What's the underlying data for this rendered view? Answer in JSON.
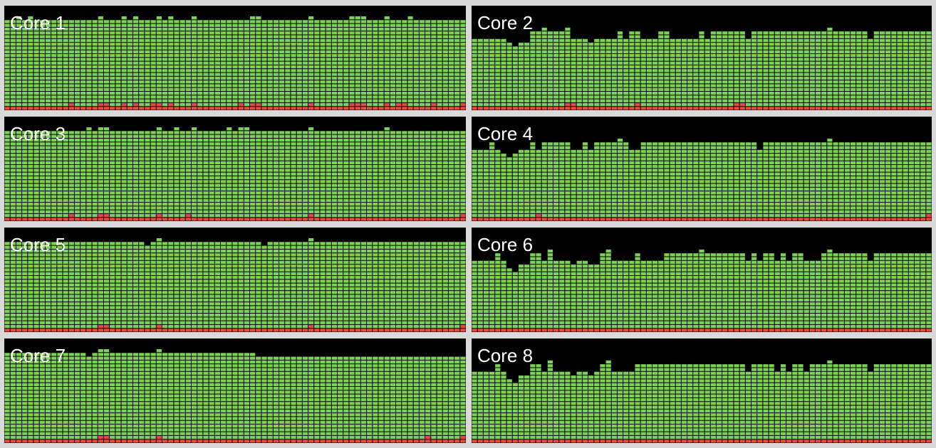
{
  "colors": {
    "user": "#7ed157",
    "system": "#e5483f",
    "background": "#000000",
    "window": "#d9d9d9",
    "label": "#ffffff"
  },
  "cores": [
    {
      "label": "Core 1",
      "user": [
        0.9,
        0.9,
        0.93,
        0.9,
        0.93,
        0.9,
        0.9,
        0.9,
        0.9,
        0.9,
        0.9,
        0.9,
        0.9,
        0.9,
        0.9,
        0.9,
        0.93,
        0.9,
        0.9,
        0.9,
        0.93,
        0.9,
        0.93,
        0.9,
        0.9,
        0.9,
        0.93,
        0.9,
        0.93,
        0.9,
        0.9,
        0.9,
        0.93,
        0.9,
        0.9,
        0.9,
        0.9,
        0.9,
        0.9,
        0.9,
        0.9,
        0.9,
        0.93,
        0.93,
        0.9,
        0.9,
        0.9,
        0.9,
        0.9,
        0.9,
        0.9,
        0.9,
        0.93,
        0.9,
        0.9,
        0.9,
        0.9,
        0.9,
        0.9,
        0.93,
        0.93,
        0.93,
        0.9,
        0.9,
        0.9,
        0.93,
        0.9,
        0.9,
        0.9,
        0.93,
        0.9,
        0.9,
        0.9,
        0.9,
        0.9,
        0.9,
        0.9,
        0.9,
        0.9
      ],
      "system": [
        0.04,
        0.04,
        0.04,
        0.04,
        0.04,
        0.04,
        0.04,
        0.04,
        0.04,
        0.04,
        0.04,
        0.08,
        0.04,
        0.04,
        0.04,
        0.04,
        0.08,
        0.08,
        0.04,
        0.04,
        0.08,
        0.04,
        0.08,
        0.04,
        0.04,
        0.08,
        0.08,
        0.04,
        0.08,
        0.04,
        0.04,
        0.04,
        0.08,
        0.04,
        0.04,
        0.04,
        0.04,
        0.04,
        0.04,
        0.04,
        0.08,
        0.04,
        0.08,
        0.08,
        0.04,
        0.04,
        0.04,
        0.04,
        0.04,
        0.04,
        0.04,
        0.04,
        0.08,
        0.04,
        0.04,
        0.04,
        0.04,
        0.04,
        0.04,
        0.08,
        0.08,
        0.08,
        0.04,
        0.04,
        0.04,
        0.08,
        0.04,
        0.08,
        0.08,
        0.04,
        0.04,
        0.04,
        0.04,
        0.08,
        0.04,
        0.04,
        0.04,
        0.04,
        0.08
      ]
    },
    {
      "label": "Core 2",
      "user": [
        0.72,
        0.72,
        0.72,
        0.72,
        0.72,
        0.72,
        0.68,
        0.64,
        0.68,
        0.68,
        0.76,
        0.76,
        0.8,
        0.76,
        0.76,
        0.76,
        0.8,
        0.72,
        0.72,
        0.72,
        0.68,
        0.72,
        0.72,
        0.72,
        0.72,
        0.76,
        0.72,
        0.76,
        0.76,
        0.72,
        0.72,
        0.72,
        0.76,
        0.76,
        0.72,
        0.72,
        0.72,
        0.72,
        0.72,
        0.76,
        0.72,
        0.76,
        0.76,
        0.76,
        0.76,
        0.76,
        0.76,
        0.72,
        0.76,
        0.76,
        0.76,
        0.76,
        0.76,
        0.76,
        0.76,
        0.76,
        0.76,
        0.76,
        0.76,
        0.76,
        0.76,
        0.8,
        0.76,
        0.76,
        0.76,
        0.76,
        0.76,
        0.76,
        0.72,
        0.76,
        0.76,
        0.76,
        0.76,
        0.76,
        0.76,
        0.76,
        0.76,
        0.76,
        0.76
      ],
      "system": [
        0.04,
        0.04,
        0.04,
        0.04,
        0.04,
        0.04,
        0.04,
        0.04,
        0.04,
        0.04,
        0.04,
        0.04,
        0.04,
        0.04,
        0.04,
        0.04,
        0.08,
        0.08,
        0.04,
        0.04,
        0.04,
        0.04,
        0.04,
        0.04,
        0.04,
        0.04,
        0.04,
        0.04,
        0.08,
        0.04,
        0.04,
        0.04,
        0.04,
        0.04,
        0.04,
        0.04,
        0.04,
        0.04,
        0.04,
        0.04,
        0.04,
        0.04,
        0.04,
        0.04,
        0.04,
        0.08,
        0.08,
        0.04,
        0.04,
        0.04,
        0.04,
        0.04,
        0.04,
        0.04,
        0.04,
        0.04,
        0.04,
        0.04,
        0.04,
        0.04,
        0.04,
        0.04,
        0.04,
        0.04,
        0.04,
        0.04,
        0.04,
        0.04,
        0.04,
        0.04,
        0.04,
        0.04,
        0.04,
        0.04,
        0.04,
        0.04,
        0.04,
        0.04,
        0.04
      ]
    },
    {
      "label": "Core 3",
      "user": [
        0.9,
        0.9,
        0.9,
        0.9,
        0.9,
        0.9,
        0.9,
        0.9,
        0.9,
        0.9,
        0.9,
        0.9,
        0.9,
        0.9,
        0.93,
        0.9,
        0.93,
        0.93,
        0.9,
        0.9,
        0.9,
        0.9,
        0.9,
        0.9,
        0.9,
        0.9,
        0.93,
        0.9,
        0.9,
        0.93,
        0.9,
        0.9,
        0.93,
        0.9,
        0.9,
        0.9,
        0.9,
        0.9,
        0.93,
        0.9,
        0.93,
        0.93,
        0.9,
        0.9,
        0.9,
        0.9,
        0.9,
        0.9,
        0.9,
        0.9,
        0.9,
        0.9,
        0.93,
        0.9,
        0.9,
        0.9,
        0.9,
        0.9,
        0.9,
        0.9,
        0.9,
        0.9,
        0.9,
        0.9,
        0.9,
        0.93,
        0.9,
        0.9,
        0.9,
        0.9,
        0.9,
        0.9,
        0.9,
        0.9,
        0.9,
        0.9,
        0.9,
        0.9,
        0.9
      ],
      "system": [
        0.04,
        0.04,
        0.04,
        0.04,
        0.04,
        0.04,
        0.04,
        0.04,
        0.04,
        0.04,
        0.04,
        0.08,
        0.04,
        0.04,
        0.04,
        0.04,
        0.08,
        0.08,
        0.04,
        0.04,
        0.04,
        0.04,
        0.04,
        0.04,
        0.04,
        0.04,
        0.08,
        0.04,
        0.04,
        0.04,
        0.04,
        0.08,
        0.04,
        0.04,
        0.04,
        0.04,
        0.04,
        0.04,
        0.04,
        0.04,
        0.04,
        0.04,
        0.04,
        0.04,
        0.04,
        0.04,
        0.04,
        0.04,
        0.04,
        0.04,
        0.04,
        0.04,
        0.08,
        0.04,
        0.04,
        0.04,
        0.04,
        0.04,
        0.04,
        0.04,
        0.04,
        0.04,
        0.04,
        0.04,
        0.04,
        0.04,
        0.04,
        0.04,
        0.04,
        0.04,
        0.04,
        0.04,
        0.04,
        0.04,
        0.04,
        0.04,
        0.04,
        0.04,
        0.08
      ]
    },
    {
      "label": "Core 4",
      "user": [
        0.72,
        0.72,
        0.72,
        0.76,
        0.72,
        0.68,
        0.64,
        0.68,
        0.72,
        0.72,
        0.76,
        0.72,
        0.76,
        0.76,
        0.76,
        0.76,
        0.76,
        0.72,
        0.72,
        0.76,
        0.72,
        0.76,
        0.76,
        0.76,
        0.76,
        0.8,
        0.76,
        0.72,
        0.72,
        0.76,
        0.76,
        0.76,
        0.76,
        0.76,
        0.76,
        0.76,
        0.76,
        0.76,
        0.76,
        0.76,
        0.76,
        0.76,
        0.76,
        0.76,
        0.76,
        0.76,
        0.76,
        0.76,
        0.76,
        0.72,
        0.76,
        0.76,
        0.76,
        0.76,
        0.76,
        0.76,
        0.76,
        0.76,
        0.76,
        0.76,
        0.76,
        0.8,
        0.76,
        0.76,
        0.76,
        0.76,
        0.76,
        0.76,
        0.76,
        0.76,
        0.76,
        0.76,
        0.76,
        0.76,
        0.76,
        0.76,
        0.76,
        0.76,
        0.76
      ],
      "system": [
        0.04,
        0.04,
        0.04,
        0.04,
        0.04,
        0.04,
        0.04,
        0.04,
        0.04,
        0.04,
        0.04,
        0.08,
        0.04,
        0.04,
        0.04,
        0.04,
        0.04,
        0.04,
        0.04,
        0.04,
        0.04,
        0.04,
        0.04,
        0.04,
        0.04,
        0.04,
        0.04,
        0.04,
        0.04,
        0.04,
        0.04,
        0.04,
        0.04,
        0.04,
        0.04,
        0.04,
        0.04,
        0.04,
        0.04,
        0.04,
        0.04,
        0.04,
        0.04,
        0.04,
        0.04,
        0.04,
        0.04,
        0.04,
        0.04,
        0.04,
        0.04,
        0.04,
        0.04,
        0.04,
        0.04,
        0.04,
        0.04,
        0.04,
        0.04,
        0.04,
        0.04,
        0.04,
        0.04,
        0.04,
        0.04,
        0.04,
        0.04,
        0.04,
        0.04,
        0.04,
        0.04,
        0.04,
        0.04,
        0.04,
        0.04,
        0.04,
        0.04,
        0.04,
        0.08
      ]
    },
    {
      "label": "Core 5",
      "user": [
        0.9,
        0.9,
        0.9,
        0.9,
        0.9,
        0.9,
        0.9,
        0.9,
        0.9,
        0.9,
        0.9,
        0.9,
        0.9,
        0.9,
        0.9,
        0.9,
        0.9,
        0.9,
        0.9,
        0.9,
        0.9,
        0.9,
        0.9,
        0.9,
        0.87,
        0.9,
        0.93,
        0.9,
        0.9,
        0.9,
        0.9,
        0.9,
        0.9,
        0.9,
        0.9,
        0.9,
        0.9,
        0.9,
        0.9,
        0.9,
        0.9,
        0.9,
        0.9,
        0.9,
        0.87,
        0.9,
        0.9,
        0.9,
        0.9,
        0.9,
        0.9,
        0.9,
        0.93,
        0.9,
        0.9,
        0.9,
        0.9,
        0.9,
        0.9,
        0.9,
        0.9,
        0.9,
        0.9,
        0.9,
        0.9,
        0.9,
        0.9,
        0.9,
        0.9,
        0.9,
        0.9,
        0.9,
        0.9,
        0.9,
        0.9,
        0.9,
        0.9,
        0.9,
        0.9
      ],
      "system": [
        0.04,
        0.04,
        0.04,
        0.04,
        0.04,
        0.04,
        0.04,
        0.04,
        0.04,
        0.04,
        0.04,
        0.04,
        0.04,
        0.04,
        0.04,
        0.04,
        0.08,
        0.08,
        0.04,
        0.04,
        0.04,
        0.04,
        0.04,
        0.04,
        0.04,
        0.04,
        0.08,
        0.04,
        0.04,
        0.04,
        0.04,
        0.04,
        0.04,
        0.04,
        0.04,
        0.04,
        0.04,
        0.04,
        0.04,
        0.04,
        0.04,
        0.04,
        0.04,
        0.04,
        0.04,
        0.04,
        0.04,
        0.04,
        0.04,
        0.04,
        0.04,
        0.04,
        0.08,
        0.04,
        0.04,
        0.04,
        0.04,
        0.04,
        0.04,
        0.04,
        0.04,
        0.04,
        0.04,
        0.04,
        0.04,
        0.04,
        0.04,
        0.04,
        0.04,
        0.04,
        0.04,
        0.04,
        0.04,
        0.04,
        0.04,
        0.04,
        0.04,
        0.04,
        0.08
      ]
    },
    {
      "label": "Core 6",
      "user": [
        0.72,
        0.72,
        0.72,
        0.72,
        0.76,
        0.72,
        0.64,
        0.6,
        0.68,
        0.68,
        0.76,
        0.76,
        0.72,
        0.8,
        0.72,
        0.72,
        0.72,
        0.68,
        0.72,
        0.72,
        0.68,
        0.68,
        0.76,
        0.8,
        0.72,
        0.72,
        0.72,
        0.72,
        0.76,
        0.72,
        0.72,
        0.72,
        0.72,
        0.76,
        0.76,
        0.76,
        0.76,
        0.76,
        0.76,
        0.8,
        0.76,
        0.76,
        0.76,
        0.76,
        0.76,
        0.76,
        0.76,
        0.72,
        0.76,
        0.72,
        0.76,
        0.76,
        0.72,
        0.76,
        0.72,
        0.76,
        0.76,
        0.72,
        0.72,
        0.72,
        0.76,
        0.8,
        0.76,
        0.76,
        0.76,
        0.76,
        0.76,
        0.76,
        0.72,
        0.76,
        0.76,
        0.76,
        0.76,
        0.76,
        0.76,
        0.76,
        0.76,
        0.76,
        0.76
      ],
      "system": [
        0.04,
        0.04,
        0.04,
        0.04,
        0.04,
        0.04,
        0.04,
        0.04,
        0.04,
        0.04,
        0.04,
        0.04,
        0.04,
        0.04,
        0.04,
        0.04,
        0.04,
        0.04,
        0.04,
        0.04,
        0.04,
        0.04,
        0.04,
        0.04,
        0.04,
        0.04,
        0.04,
        0.04,
        0.04,
        0.04,
        0.04,
        0.04,
        0.04,
        0.04,
        0.04,
        0.04,
        0.04,
        0.04,
        0.04,
        0.04,
        0.04,
        0.04,
        0.04,
        0.04,
        0.04,
        0.04,
        0.04,
        0.04,
        0.04,
        0.04,
        0.04,
        0.04,
        0.04,
        0.04,
        0.04,
        0.04,
        0.04,
        0.04,
        0.04,
        0.04,
        0.04,
        0.04,
        0.04,
        0.04,
        0.04,
        0.04,
        0.04,
        0.04,
        0.04,
        0.04,
        0.04,
        0.04,
        0.04,
        0.04,
        0.04,
        0.04,
        0.04,
        0.04,
        0.04
      ]
    },
    {
      "label": "Core 7",
      "user": [
        0.9,
        0.9,
        0.9,
        0.9,
        0.9,
        0.9,
        0.9,
        0.9,
        0.9,
        0.9,
        0.9,
        0.9,
        0.9,
        0.9,
        0.87,
        0.9,
        0.93,
        0.93,
        0.9,
        0.9,
        0.9,
        0.9,
        0.9,
        0.9,
        0.9,
        0.9,
        0.93,
        0.9,
        0.9,
        0.9,
        0.9,
        0.9,
        0.9,
        0.9,
        0.9,
        0.9,
        0.9,
        0.9,
        0.9,
        0.9,
        0.9,
        0.9,
        0.9,
        0.87,
        0.87,
        0.87,
        0.87,
        0.87,
        0.87,
        0.87,
        0.87,
        0.87,
        0.87,
        0.87,
        0.87,
        0.87,
        0.87,
        0.87,
        0.87,
        0.87,
        0.87,
        0.87,
        0.87,
        0.87,
        0.87,
        0.87,
        0.87,
        0.87,
        0.87,
        0.87,
        0.87,
        0.87,
        0.87,
        0.87,
        0.87,
        0.87,
        0.87,
        0.87,
        0.84
      ],
      "system": [
        0.04,
        0.04,
        0.04,
        0.04,
        0.04,
        0.04,
        0.04,
        0.04,
        0.04,
        0.04,
        0.04,
        0.04,
        0.04,
        0.04,
        0.04,
        0.04,
        0.08,
        0.08,
        0.04,
        0.04,
        0.04,
        0.04,
        0.04,
        0.04,
        0.04,
        0.04,
        0.08,
        0.04,
        0.04,
        0.04,
        0.04,
        0.04,
        0.04,
        0.04,
        0.04,
        0.04,
        0.04,
        0.04,
        0.04,
        0.04,
        0.04,
        0.04,
        0.04,
        0.04,
        0.04,
        0.04,
        0.04,
        0.04,
        0.04,
        0.04,
        0.04,
        0.04,
        0.04,
        0.04,
        0.04,
        0.04,
        0.04,
        0.04,
        0.04,
        0.04,
        0.04,
        0.04,
        0.04,
        0.04,
        0.04,
        0.04,
        0.04,
        0.04,
        0.04,
        0.04,
        0.04,
        0.04,
        0.08,
        0.04,
        0.04,
        0.04,
        0.04,
        0.04,
        0.08
      ]
    },
    {
      "label": "Core 8",
      "user": [
        0.72,
        0.72,
        0.72,
        0.72,
        0.76,
        0.72,
        0.64,
        0.6,
        0.68,
        0.68,
        0.76,
        0.76,
        0.72,
        0.8,
        0.72,
        0.72,
        0.72,
        0.68,
        0.72,
        0.72,
        0.68,
        0.72,
        0.76,
        0.8,
        0.72,
        0.72,
        0.72,
        0.72,
        0.76,
        0.76,
        0.76,
        0.76,
        0.76,
        0.76,
        0.76,
        0.76,
        0.76,
        0.76,
        0.76,
        0.76,
        0.76,
        0.76,
        0.76,
        0.76,
        0.76,
        0.76,
        0.76,
        0.72,
        0.76,
        0.76,
        0.76,
        0.76,
        0.72,
        0.76,
        0.72,
        0.76,
        0.76,
        0.72,
        0.76,
        0.76,
        0.76,
        0.8,
        0.76,
        0.76,
        0.76,
        0.76,
        0.76,
        0.76,
        0.72,
        0.76,
        0.76,
        0.76,
        0.76,
        0.76,
        0.76,
        0.76,
        0.76,
        0.76,
        0.76
      ],
      "system": [
        0.04,
        0.04,
        0.04,
        0.04,
        0.04,
        0.04,
        0.04,
        0.04,
        0.04,
        0.04,
        0.04,
        0.04,
        0.04,
        0.04,
        0.04,
        0.04,
        0.04,
        0.04,
        0.04,
        0.04,
        0.04,
        0.04,
        0.04,
        0.04,
        0.04,
        0.04,
        0.04,
        0.04,
        0.04,
        0.04,
        0.04,
        0.04,
        0.04,
        0.04,
        0.04,
        0.04,
        0.04,
        0.04,
        0.04,
        0.04,
        0.04,
        0.04,
        0.04,
        0.04,
        0.04,
        0.04,
        0.04,
        0.04,
        0.04,
        0.04,
        0.04,
        0.04,
        0.04,
        0.04,
        0.04,
        0.04,
        0.04,
        0.04,
        0.04,
        0.04,
        0.04,
        0.04,
        0.04,
        0.04,
        0.04,
        0.04,
        0.04,
        0.04,
        0.04,
        0.04,
        0.04,
        0.04,
        0.04,
        0.04,
        0.04,
        0.04,
        0.04,
        0.04,
        0.04
      ]
    }
  ]
}
